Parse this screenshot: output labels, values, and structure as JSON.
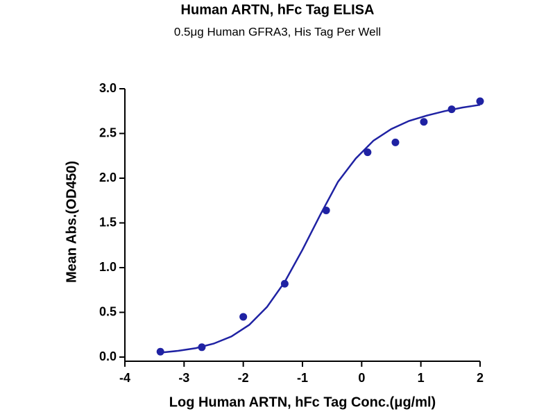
{
  "chart_data": {
    "type": "scatter",
    "title": "Human ARTN, hFc Tag ELISA",
    "subtitle": "0.5μg Human GFRA3, His Tag Per Well",
    "x_label": "Log Human ARTN, hFc Tag Conc.(μg/ml)",
    "y_label": "Mean Abs.(OD450)",
    "xlim": [
      -4,
      2
    ],
    "xticks": [
      -4,
      -3,
      -2,
      -1,
      0,
      1,
      2
    ],
    "ylim": [
      0,
      3
    ],
    "yticks": [
      {
        "value": 0,
        "label": "0.0"
      },
      0.5,
      {
        "value": 1,
        "label": "1.0"
      },
      1.5,
      {
        "value": 2,
        "label": "2.0"
      },
      2.5,
      {
        "value": 3,
        "label": "3.0"
      }
    ],
    "series": [
      {
        "type": "scatter",
        "color": "#1f22a3",
        "x": [
          -3.4,
          -2.7,
          -2.0,
          -1.3,
          -0.6,
          0.1,
          0.57,
          1.05,
          1.52,
          2.0
        ],
        "values": [
          0.06,
          0.11,
          0.45,
          0.82,
          1.64,
          2.29,
          2.4,
          2.63,
          2.77,
          2.86
        ]
      },
      {
        "type": "line",
        "color": "#1f22a3",
        "x": [
          -3.4,
          -3.1,
          -2.8,
          -2.5,
          -2.2,
          -1.9,
          -1.6,
          -1.3,
          -1.0,
          -0.7,
          -0.4,
          -0.1,
          0.2,
          0.5,
          0.8,
          1.1,
          1.4,
          1.7,
          2.0
        ],
        "values": [
          0.05,
          0.07,
          0.1,
          0.15,
          0.23,
          0.36,
          0.56,
          0.84,
          1.2,
          1.59,
          1.96,
          2.22,
          2.42,
          2.55,
          2.64,
          2.7,
          2.75,
          2.79,
          2.82
        ]
      }
    ]
  }
}
